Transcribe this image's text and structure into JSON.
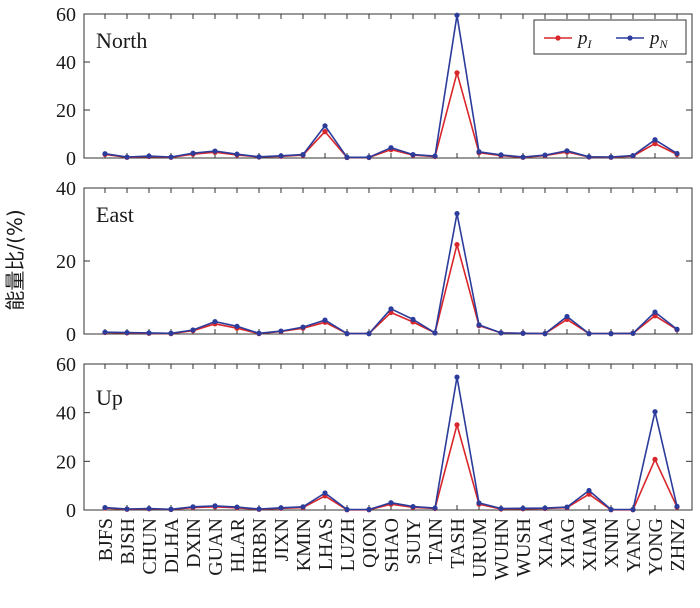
{
  "chart_data": {
    "type": "line",
    "ylabel": "能量比/(%)",
    "categories": [
      "BJFS",
      "BJSH",
      "CHUN",
      "DLHA",
      "DXIN",
      "GUAN",
      "HLAR",
      "HRBN",
      "JIXN",
      "KMIN",
      "LHAS",
      "LUZH",
      "QION",
      "SHAO",
      "SUIY",
      "TAIN",
      "TASH",
      "URUM",
      "WUHN",
      "WUSH",
      "XIAA",
      "XIAG",
      "XIAM",
      "XNIN",
      "YANC",
      "YONG",
      "ZHNZ"
    ],
    "legend": [
      {
        "key": "pI",
        "symbol": "p",
        "sub": "I",
        "color": "#d9262b"
      },
      {
        "key": "pN",
        "symbol": "p",
        "sub": "N",
        "color": "#2b3c9b"
      }
    ],
    "panels": [
      {
        "name": "North",
        "ylim": [
          0,
          60
        ],
        "yticks": [
          0,
          20,
          40,
          60
        ],
        "series": [
          {
            "key": "pI",
            "values": [
              1.5,
              0.3,
              0.6,
              0.3,
              1.6,
              2.4,
              1.3,
              0.4,
              0.7,
              1.2,
              11.0,
              0.2,
              0.2,
              3.5,
              1.2,
              0.6,
              35.5,
              2.2,
              1.0,
              0.3,
              1.0,
              2.5,
              0.4,
              0.3,
              0.8,
              6.0,
              1.5
            ]
          },
          {
            "key": "pN",
            "values": [
              1.8,
              0.4,
              0.8,
              0.4,
              2.0,
              2.9,
              1.6,
              0.5,
              0.9,
              1.4,
              13.4,
              0.3,
              0.3,
              4.3,
              1.4,
              0.8,
              59.5,
              2.6,
              1.3,
              0.4,
              1.2,
              3.0,
              0.5,
              0.4,
              1.0,
              7.6,
              1.9
            ]
          }
        ]
      },
      {
        "name": "East",
        "ylim": [
          0,
          40
        ],
        "yticks": [
          0,
          20,
          40
        ],
        "series": [
          {
            "key": "pI",
            "values": [
              0.4,
              0.3,
              0.2,
              0.1,
              0.9,
              2.8,
              1.6,
              0.1,
              0.7,
              1.6,
              3.2,
              0.1,
              0.1,
              5.9,
              3.3,
              0.3,
              24.5,
              2.3,
              0.3,
              0.2,
              0.1,
              4.0,
              0.1,
              0.1,
              0.2,
              5.0,
              1.2
            ]
          },
          {
            "key": "pN",
            "values": [
              0.5,
              0.4,
              0.3,
              0.2,
              1.1,
              3.4,
              2.1,
              0.2,
              0.8,
              1.9,
              3.8,
              0.1,
              0.1,
              6.9,
              4.0,
              0.3,
              33.0,
              2.5,
              0.3,
              0.2,
              0.1,
              4.8,
              0.1,
              0.1,
              0.2,
              6.0,
              1.3
            ]
          }
        ]
      },
      {
        "name": "Up",
        "ylim": [
          0,
          60
        ],
        "yticks": [
          0,
          20,
          40,
          60
        ],
        "series": [
          {
            "key": "pI",
            "values": [
              0.8,
              0.3,
              0.5,
              0.2,
              1.0,
              1.3,
              0.9,
              0.3,
              0.7,
              1.0,
              5.8,
              0.1,
              0.1,
              2.4,
              1.1,
              0.6,
              35.0,
              2.4,
              0.4,
              0.5,
              0.6,
              1.0,
              6.5,
              0.1,
              0.1,
              20.8,
              1.2
            ]
          },
          {
            "key": "pN",
            "values": [
              1.0,
              0.4,
              0.6,
              0.3,
              1.3,
              1.7,
              1.2,
              0.4,
              0.9,
              1.3,
              7.0,
              0.2,
              0.2,
              3.0,
              1.4,
              0.8,
              54.6,
              2.9,
              0.6,
              0.7,
              0.8,
              1.2,
              8.0,
              0.2,
              0.2,
              40.4,
              1.5
            ]
          }
        ]
      }
    ]
  }
}
